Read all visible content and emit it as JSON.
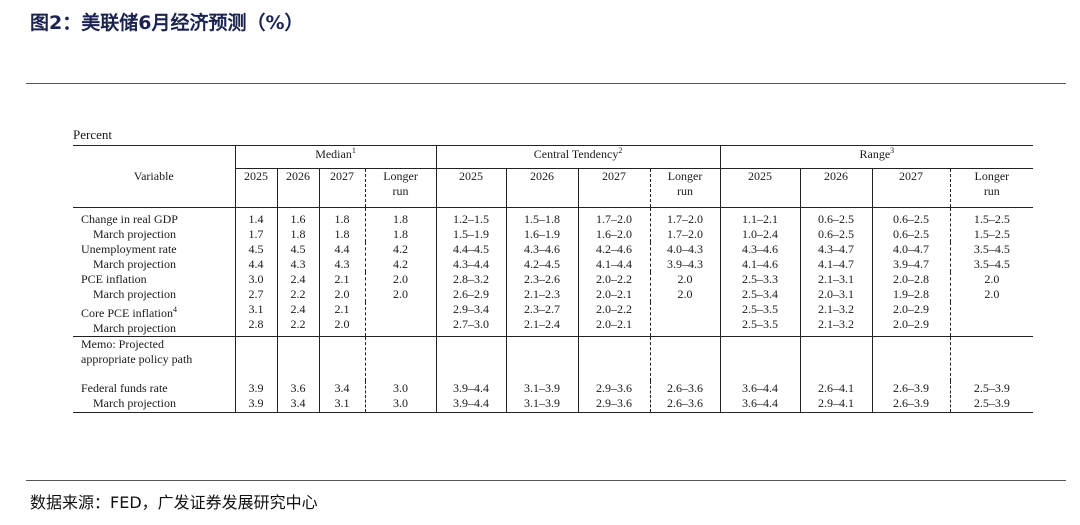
{
  "title": "图2：美联储6月经济预测（%）",
  "source": "数据来源：FED，广发证券发展研究中心",
  "table": {
    "unit": "Percent",
    "variable_header": "Variable",
    "groups": [
      {
        "name": "Median",
        "footnote": "1"
      },
      {
        "name": "Central Tendency",
        "footnote": "2"
      },
      {
        "name": "Range",
        "footnote": "3"
      }
    ],
    "years": [
      "2025",
      "2026",
      "2027"
    ],
    "longer_run": [
      "Longer",
      "run"
    ],
    "sub_label": "March projection",
    "rows": [
      {
        "label": "Change in real GDP",
        "footnote": "",
        "current": [
          "1.4",
          "1.6",
          "1.8",
          "1.8",
          "1.2–1.5",
          "1.5–1.8",
          "1.7–2.0",
          "1.7–2.0",
          "1.1–2.1",
          "0.6–2.5",
          "0.6–2.5",
          "1.5–2.5"
        ],
        "march": [
          "1.7",
          "1.8",
          "1.8",
          "1.8",
          "1.5–1.9",
          "1.6–1.9",
          "1.6–2.0",
          "1.7–2.0",
          "1.0–2.4",
          "0.6–2.5",
          "0.6–2.5",
          "1.5–2.5"
        ]
      },
      {
        "label": "Unemployment rate",
        "footnote": "",
        "current": [
          "4.5",
          "4.5",
          "4.4",
          "4.2",
          "4.4–4.5",
          "4.3–4.6",
          "4.2–4.6",
          "4.0–4.3",
          "4.3–4.6",
          "4.3–4.7",
          "4.0–4.7",
          "3.5–4.5"
        ],
        "march": [
          "4.4",
          "4.3",
          "4.3",
          "4.2",
          "4.3–4.4",
          "4.2–4.5",
          "4.1–4.4",
          "3.9–4.3",
          "4.1–4.6",
          "4.1–4.7",
          "3.9–4.7",
          "3.5–4.5"
        ]
      },
      {
        "label": "PCE inflation",
        "footnote": "",
        "current": [
          "3.0",
          "2.4",
          "2.1",
          "2.0",
          "2.8–3.2",
          "2.3–2.6",
          "2.0–2.2",
          "2.0",
          "2.5–3.3",
          "2.1–3.1",
          "2.0–2.8",
          "2.0"
        ],
        "march": [
          "2.7",
          "2.2",
          "2.0",
          "2.0",
          "2.6–2.9",
          "2.1–2.3",
          "2.0–2.1",
          "2.0",
          "2.5–3.4",
          "2.0–3.1",
          "1.9–2.8",
          "2.0"
        ]
      },
      {
        "label": "Core PCE inflation",
        "footnote": "4",
        "current": [
          "3.1",
          "2.4",
          "2.1",
          "",
          "2.9–3.4",
          "2.3–2.7",
          "2.0–2.2",
          "",
          "2.5–3.5",
          "2.1–3.2",
          "2.0–2.9",
          ""
        ],
        "march": [
          "2.8",
          "2.2",
          "2.0",
          "",
          "2.7–3.0",
          "2.1–2.4",
          "2.0–2.1",
          "",
          "2.5–3.5",
          "2.1–3.2",
          "2.0–2.9",
          ""
        ]
      }
    ],
    "memo": [
      "Memo: Projected",
      "appropriate policy path"
    ],
    "fed_funds": {
      "label": "Federal funds rate",
      "current": [
        "3.9",
        "3.6",
        "3.4",
        "3.0",
        "3.9–4.4",
        "3.1–3.9",
        "2.9–3.6",
        "2.6–3.6",
        "3.6–4.4",
        "2.6–4.1",
        "2.6–3.9",
        "2.5–3.9"
      ],
      "march": [
        "3.9",
        "3.4",
        "3.1",
        "3.0",
        "3.9–4.4",
        "3.1–3.9",
        "2.9–3.6",
        "2.6–3.6",
        "3.6–4.4",
        "2.9–4.1",
        "2.6–3.9",
        "2.5–3.9"
      ]
    }
  }
}
